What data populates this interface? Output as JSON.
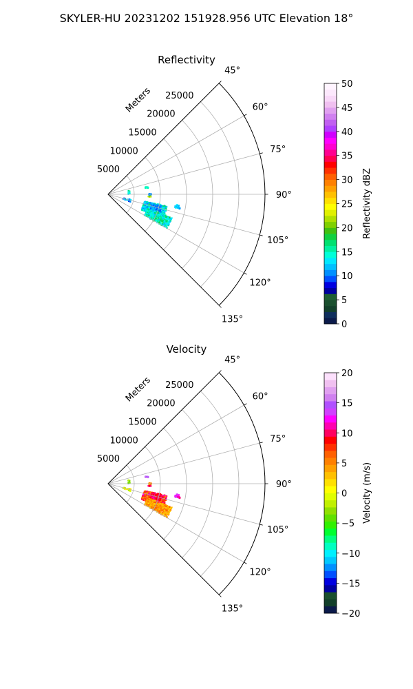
{
  "figure": {
    "suptitle": "SKYLER-HU  20231202  151928.956 UTC Elevation 18°"
  },
  "chart_data": [
    {
      "type": "polar-sector",
      "title": "Reflectivity",
      "radial_label": "Meters",
      "radial_ticks": [
        5000,
        10000,
        15000,
        20000,
        25000
      ],
      "rlim": [
        0,
        30000
      ],
      "angle_ticks": [
        "45°",
        "60°",
        "75°",
        "90°",
        "105°",
        "120°",
        "135°"
      ],
      "angle_tick_values_deg": [
        45,
        60,
        75,
        90,
        105,
        120,
        135
      ],
      "angle_range_deg": [
        45,
        135
      ],
      "grid": true,
      "colorbar": {
        "label": "Reflectivity dBZ",
        "range": [
          0,
          50
        ],
        "ticks": [
          "0",
          "5",
          "10",
          "15",
          "20",
          "25",
          "30",
          "35",
          "40",
          "45",
          "50"
        ],
        "tick_values": [
          0,
          5,
          10,
          15,
          20,
          25,
          30,
          35,
          40,
          45,
          50
        ]
      },
      "echoes": [
        {
          "az": 108,
          "r_range": [
            7000,
            11500
          ],
          "az_spread": 7,
          "value_range": [
            10,
            17
          ],
          "density": 650
        },
        {
          "az": 115,
          "r_range": [
            8000,
            13000
          ],
          "az_spread": 5,
          "value_range": [
            12,
            18
          ],
          "density": 420
        },
        {
          "az": 105,
          "r_range": [
            8500,
            10500
          ],
          "az_spread": 3,
          "value_range": [
            9,
            12
          ],
          "density": 120
        },
        {
          "az": 100,
          "r_range": [
            13000,
            14000
          ],
          "az_spread": 1.5,
          "value_range": [
            11,
            13
          ],
          "density": 25
        },
        {
          "az": 90,
          "r_range": [
            7600,
            8300
          ],
          "az_spread": 1,
          "value_range": [
            10,
            11
          ],
          "density": 18
        },
        {
          "az": 93,
          "r_range": [
            7600,
            8200
          ],
          "az_spread": 0.6,
          "value_range": [
            20,
            24
          ],
          "density": 8
        },
        {
          "az": 80,
          "r_range": [
            7200,
            7800
          ],
          "az_spread": 1.2,
          "value_range": [
            14,
            16
          ],
          "density": 12
        },
        {
          "az": 106,
          "r_range": [
            3000,
            4500
          ],
          "az_spread": 3,
          "value_range": [
            8,
            14
          ],
          "density": 30
        },
        {
          "az": 85,
          "r_range": [
            3800,
            4200
          ],
          "az_spread": 5,
          "value_range": [
            13,
            17
          ],
          "density": 10
        }
      ]
    },
    {
      "type": "polar-sector",
      "title": "Velocity",
      "radial_label": "Meters",
      "radial_ticks": [
        5000,
        10000,
        15000,
        20000,
        25000
      ],
      "rlim": [
        0,
        30000
      ],
      "angle_ticks": [
        "45°",
        "60°",
        "75°",
        "90°",
        "105°",
        "120°",
        "135°"
      ],
      "angle_tick_values_deg": [
        45,
        60,
        75,
        90,
        105,
        120,
        135
      ],
      "angle_range_deg": [
        45,
        135
      ],
      "grid": true,
      "colorbar": {
        "label": "Velocity (m/s)",
        "range": [
          -20,
          20
        ],
        "ticks": [
          "−20",
          "−15",
          "−10",
          "−5",
          "0",
          "5",
          "10",
          "15",
          "20"
        ],
        "tick_values": [
          -20,
          -15,
          -10,
          -5,
          0,
          5,
          10,
          15,
          20
        ]
      },
      "echoes": [
        {
          "az": 108,
          "r_range": [
            7000,
            11500
          ],
          "az_spread": 7,
          "value_range": [
            4,
            12
          ],
          "density": 650
        },
        {
          "az": 115,
          "r_range": [
            8000,
            13000
          ],
          "az_spread": 5,
          "value_range": [
            2,
            7
          ],
          "density": 420
        },
        {
          "az": 105,
          "r_range": [
            8500,
            10500
          ],
          "az_spread": 3,
          "value_range": [
            8,
            11
          ],
          "density": 120
        },
        {
          "az": 100,
          "r_range": [
            13000,
            14000
          ],
          "az_spread": 1.5,
          "value_range": [
            10,
            14
          ],
          "density": 25
        },
        {
          "az": 90,
          "r_range": [
            7600,
            8300
          ],
          "az_spread": 1,
          "value_range": [
            4,
            7
          ],
          "density": 18
        },
        {
          "az": 93,
          "r_range": [
            7600,
            8200
          ],
          "az_spread": 0.6,
          "value_range": [
            9,
            11
          ],
          "density": 8
        },
        {
          "az": 80,
          "r_range": [
            7200,
            7800
          ],
          "az_spread": 1.2,
          "value_range": [
            14,
            17
          ],
          "density": 12
        },
        {
          "az": 106,
          "r_range": [
            3000,
            4500
          ],
          "az_spread": 3,
          "value_range": [
            -3,
            2
          ],
          "density": 30
        },
        {
          "az": 85,
          "r_range": [
            3800,
            4200
          ],
          "az_spread": 5,
          "value_range": [
            -4,
            -1
          ],
          "density": 10
        }
      ]
    }
  ]
}
